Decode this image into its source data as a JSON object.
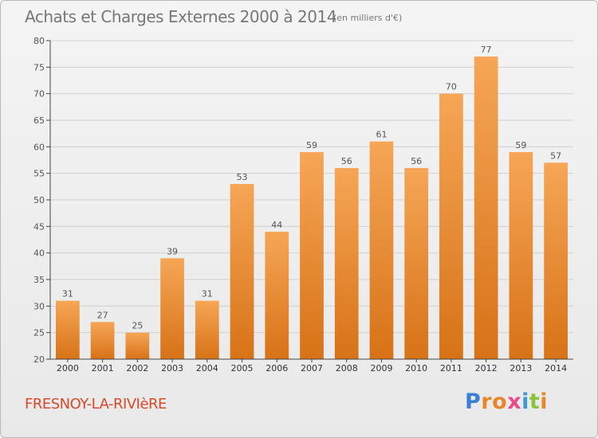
{
  "header": {
    "title": "Achats et Charges Externes 2000 à 2014",
    "unit": "(en milliers d'€)"
  },
  "footer": {
    "commune": "FRESNOY-LA-RIVIèRE",
    "brand": [
      "P",
      "r",
      "o",
      "x",
      "i",
      "t",
      "i"
    ],
    "brand_colors": [
      "#3a7fd4",
      "#e8862a",
      "#e8862a",
      "#e84a8a",
      "#3a9ad4",
      "#8ac43a",
      "#e8862a"
    ]
  },
  "colors": {
    "bar_top": "#f6a656",
    "bar_bottom": "#d77217",
    "label": "#555555",
    "grid": "#d0d0d0",
    "axis": "#444444"
  },
  "chart_data": {
    "type": "bar",
    "title": "Achats et Charges Externes 2000 à 2014",
    "subtitle": "(en milliers d'€)",
    "categories": [
      "2000",
      "2001",
      "2002",
      "2003",
      "2004",
      "2005",
      "2006",
      "2007",
      "2008",
      "2009",
      "2010",
      "2011",
      "2012",
      "2013",
      "2014"
    ],
    "values": [
      31,
      27,
      25,
      39,
      31,
      53,
      44,
      59,
      56,
      61,
      56,
      70,
      77,
      59,
      57
    ],
    "ylim": [
      20,
      80
    ],
    "yticks": [
      20,
      25,
      30,
      35,
      40,
      45,
      50,
      55,
      60,
      65,
      70,
      75,
      80
    ],
    "grid": true,
    "data_labels": true
  }
}
